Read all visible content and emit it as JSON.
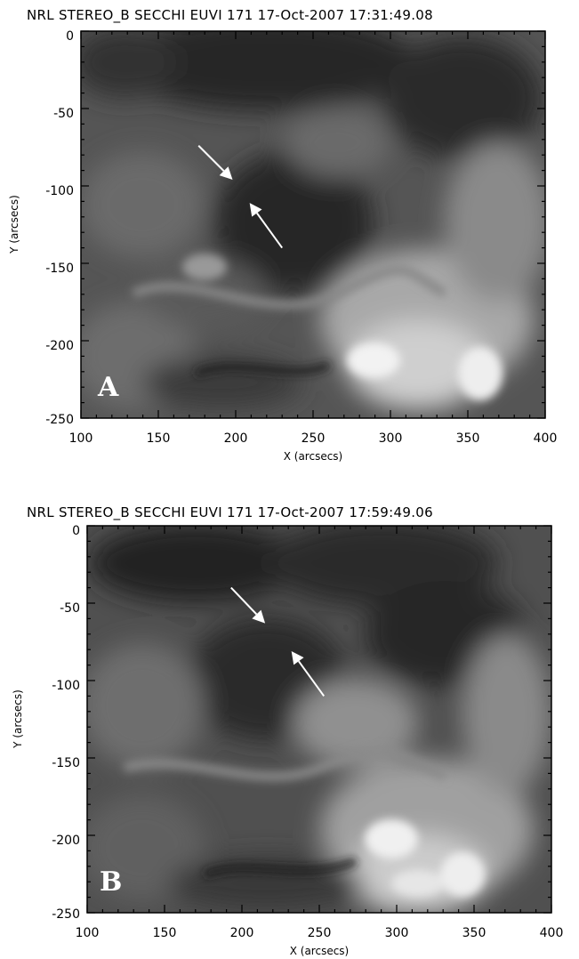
{
  "figure": {
    "panels": [
      {
        "id": "A",
        "title": "NRL STEREO_B SECCHI EUVI 171 17-Oct-2007 17:31:49.08",
        "letter": "A",
        "xlabel": "X (arcsecs)",
        "ylabel": "Y (arcsecs)",
        "xticks": [
          "100",
          "150",
          "200",
          "250",
          "300",
          "350",
          "400"
        ],
        "yticks": [
          "0",
          "-50",
          "-100",
          "-150",
          "-200",
          "-250"
        ],
        "xlim": [
          100,
          400
        ],
        "ylim": [
          -250,
          0
        ],
        "arrows": [
          {
            "from": [
              176,
              -74
            ],
            "to": [
              198,
              -96
            ]
          },
          {
            "from": [
              230,
              -140
            ],
            "to": [
              209,
              -111
            ]
          }
        ]
      },
      {
        "id": "B",
        "title": "NRL STEREO_B SECCHI EUVI 171 17-Oct-2007 17:59:49.06",
        "letter": "B",
        "xlabel": "X (arcsecs)",
        "ylabel": "Y (arcsecs)",
        "xticks": [
          "100",
          "150",
          "200",
          "250",
          "300",
          "350",
          "400"
        ],
        "yticks": [
          "0",
          "-50",
          "-100",
          "-150",
          "-200",
          "-250"
        ],
        "xlim": [
          100,
          400
        ],
        "ylim": [
          -250,
          0
        ],
        "arrows": [
          {
            "from": [
              193,
              -40
            ],
            "to": [
              215,
              -63
            ]
          },
          {
            "from": [
              253,
              -110
            ],
            "to": [
              232,
              -81
            ]
          }
        ]
      }
    ]
  },
  "colors": {
    "arrow": "#ffffff",
    "letter": "#ffffff",
    "image_dark": "#1a1a1a",
    "image_bright": "#e8e8e8"
  }
}
